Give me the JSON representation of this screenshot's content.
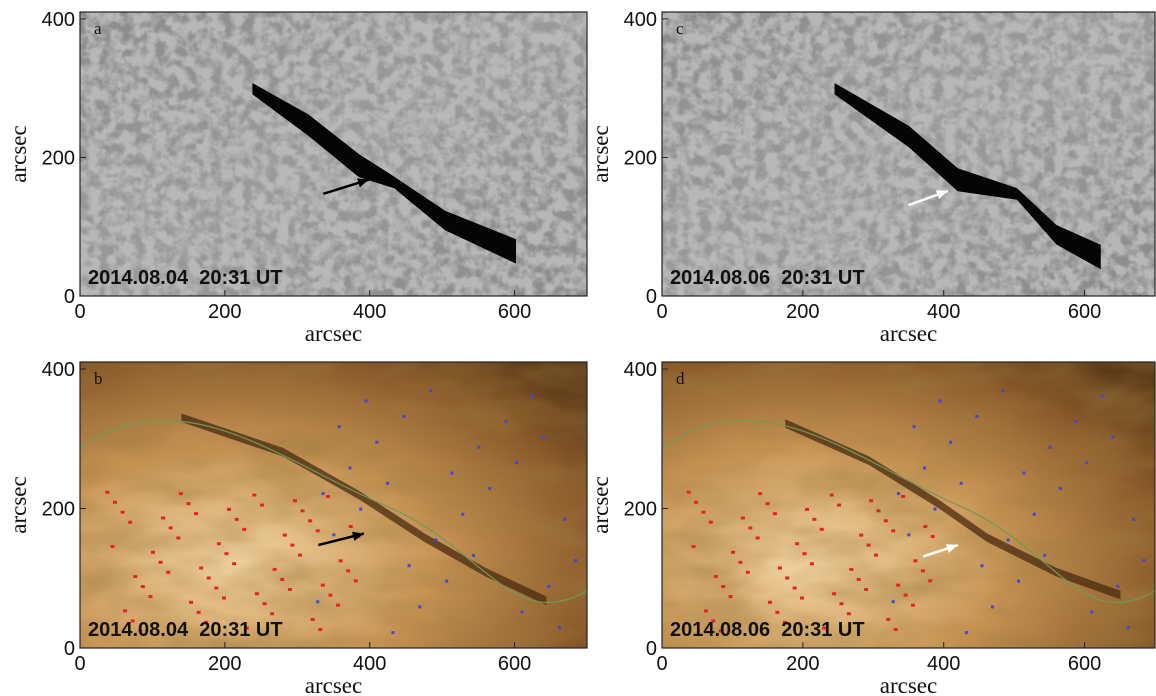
{
  "figure": {
    "panels": [
      {
        "letter": "a",
        "timestamp": "2014.08.04  20:31 UT",
        "xlabel": "arcsec",
        "ylabel": "arcsec",
        "xlim": [
          0,
          700
        ],
        "ylim": [
          0,
          410
        ],
        "xticks": [
          0,
          200,
          400,
          600
        ],
        "yticks": [
          0,
          200,
          400
        ]
      },
      {
        "letter": "c",
        "timestamp": "2014.08.06  20:31 UT",
        "xlabel": "arcsec",
        "ylabel": "arcsec",
        "xlim": [
          0,
          700
        ],
        "ylim": [
          0,
          410
        ],
        "xticks": [
          0,
          200,
          400,
          600
        ],
        "yticks": [
          0,
          200,
          400
        ]
      },
      {
        "letter": "b",
        "timestamp": "2014.08.04  20:31 UT",
        "xlabel": "arcsec",
        "ylabel": "arcsec",
        "xlim": [
          0,
          700
        ],
        "ylim": [
          0,
          410
        ],
        "xticks": [
          0,
          200,
          400,
          600
        ],
        "yticks": [
          0,
          200,
          400
        ]
      },
      {
        "letter": "d",
        "timestamp": "2014.08.06  20:31 UT",
        "xlabel": "arcsec",
        "ylabel": "arcsec",
        "xlim": [
          0,
          700
        ],
        "ylim": [
          0,
          410
        ],
        "xticks": [
          0,
          200,
          400,
          600
        ],
        "yticks": [
          0,
          200,
          400
        ]
      }
    ]
  }
}
